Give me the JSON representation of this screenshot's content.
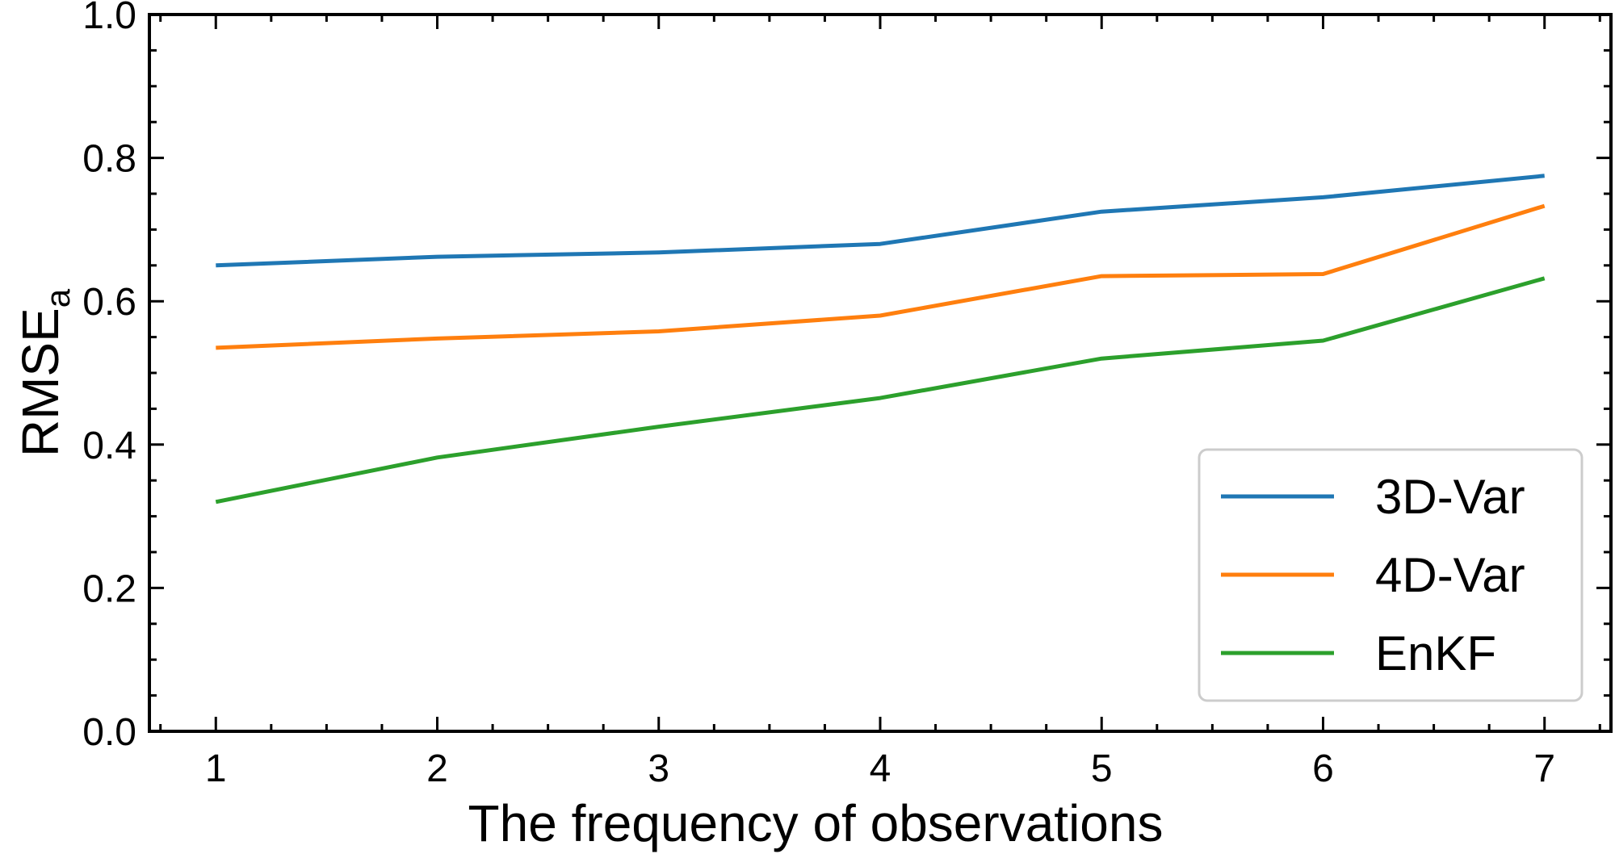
{
  "chart_data": {
    "type": "line",
    "xlabel": "The frequency of observations",
    "ylabel": "RMSE",
    "ylabel_subscript": "a",
    "x": [
      1,
      2,
      3,
      4,
      5,
      6,
      7
    ],
    "xlim": [
      0.7,
      7.3
    ],
    "ylim": [
      0.0,
      1.0
    ],
    "x_ticks": [
      "1",
      "2",
      "3",
      "4",
      "5",
      "6",
      "7"
    ],
    "y_ticks": [
      "0.0",
      "0.2",
      "0.4",
      "0.6",
      "0.8",
      "1.0"
    ],
    "grid": false,
    "legend_position": "lower-right",
    "series": [
      {
        "name": "3D-Var",
        "color": "#1f77b4",
        "values": [
          0.65,
          0.662,
          0.668,
          0.68,
          0.725,
          0.745,
          0.775
        ]
      },
      {
        "name": "4D-Var",
        "color": "#ff7f0e",
        "values": [
          0.535,
          0.548,
          0.558,
          0.58,
          0.635,
          0.638,
          0.733
        ]
      },
      {
        "name": "EnKF",
        "color": "#2ca02c",
        "values": [
          0.32,
          0.382,
          0.425,
          0.465,
          0.52,
          0.545,
          0.632
        ]
      }
    ]
  }
}
